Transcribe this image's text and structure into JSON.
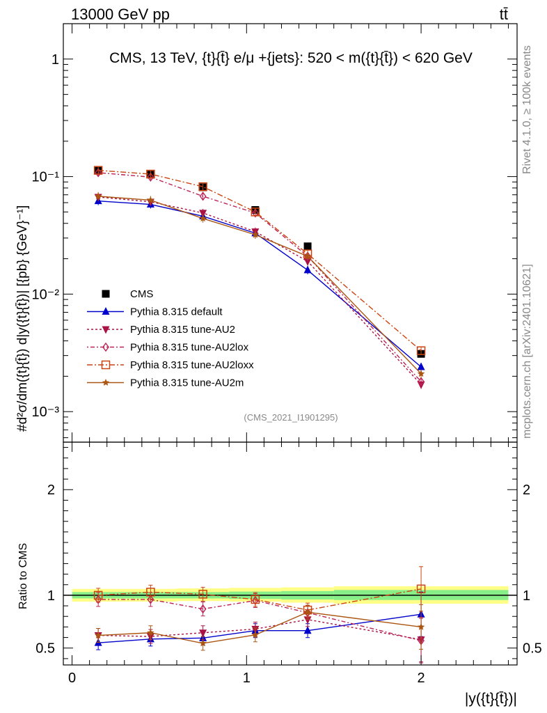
{
  "header": {
    "left": "13000 GeV pp",
    "right": "tt̄"
  },
  "side_labels": {
    "rivet": "Rivet 4.1.0, ≥ 100k events",
    "mcplots": "mcplots.cern.ch [arXiv:2401.10621]"
  },
  "chart_data": [
    {
      "type": "line",
      "panel": "main",
      "title": "CMS, 13 TeV, {t}{t̄} e/μ +{jets}: 520 < m({t}{t̄}) < 620 GeV",
      "ylabel": "#frac{d²σ}{dm({t}{t̄}) d|y({t}{t̄})|} [{pb} {GeV}⁻¹]",
      "ylabel_display": "#d²σ/dm({t}{t̄}) d|y({t}{t̄})| [{pb} {GeV}⁻¹]",
      "yscale": "log",
      "ylim": [
        0.00055,
        2.0
      ],
      "xlim": [
        -0.05,
        2.55
      ],
      "ytick_labels": [
        "10⁻³",
        "10⁻²",
        "10⁻¹",
        "1"
      ],
      "ytick_values": [
        0.001,
        0.01,
        0.1,
        1
      ],
      "watermark": "(CMS_2021_I1901295)",
      "x": [
        0.15,
        0.45,
        0.75,
        1.05,
        1.35,
        2.0
      ],
      "series": [
        {
          "name": "CMS",
          "color": "#000000",
          "marker": "square",
          "dash": "none",
          "values": [
            0.113,
            0.104,
            0.081,
            0.052,
            0.0255,
            0.0031
          ]
        },
        {
          "name": "Pythia 8.315 default",
          "color": "#0000cc",
          "marker": "triangle-up",
          "dash": "solid",
          "values": [
            0.062,
            0.058,
            0.046,
            0.033,
            0.016,
            0.0024
          ]
        },
        {
          "name": "Pythia 8.315 tune-AU2",
          "color": "#aa1144",
          "marker": "triangle-down",
          "dash": "3,3",
          "values": [
            0.067,
            0.061,
            0.049,
            0.034,
            0.019,
            0.0017
          ]
        },
        {
          "name": "Pythia 8.315 tune-AU2lox",
          "color": "#bb2255",
          "marker": "diamond-open",
          "dash": "2,3,6,3",
          "values": [
            0.108,
            0.099,
            0.068,
            0.049,
            0.021,
            0.0018
          ]
        },
        {
          "name": "Pythia 8.315 tune-AU2loxx",
          "color": "#cc4411",
          "marker": "square-open",
          "dash": "8,3,2,3",
          "values": [
            0.113,
            0.105,
            0.082,
            0.05,
            0.022,
            0.0033
          ]
        },
        {
          "name": "Pythia 8.315 tune-AU2m",
          "color": "#aa5511",
          "marker": "star",
          "dash": "solid",
          "values": [
            0.068,
            0.063,
            0.044,
            0.032,
            0.021,
            0.0021
          ]
        }
      ]
    },
    {
      "type": "line",
      "panel": "ratio",
      "ylabel": "Ratio to CMS",
      "xlabel": "|y({t}{t̄})|",
      "ylim": [
        0.34,
        2.45
      ],
      "xlim": [
        -0.05,
        2.55
      ],
      "ytick_labels": [
        "0.5",
        "1",
        "2"
      ],
      "ytick_values": [
        0.5,
        1,
        2
      ],
      "xtick_labels": [
        "0",
        "1",
        "2"
      ],
      "xtick_values": [
        0,
        1,
        2
      ],
      "x": [
        0.15,
        0.45,
        0.75,
        1.05,
        1.35,
        2.0
      ],
      "bands": {
        "yellow": {
          "color": "#ffff88",
          "bins": [
            [
              0,
              0.3,
              0.94,
              1.06
            ],
            [
              0.3,
              0.6,
              0.94,
              1.06
            ],
            [
              0.6,
              0.9,
              0.945,
              1.065
            ],
            [
              0.9,
              1.2,
              0.94,
              1.07
            ],
            [
              1.2,
              1.5,
              0.93,
              1.075
            ],
            [
              1.5,
              2.5,
              0.92,
              1.085
            ]
          ]
        },
        "green": {
          "color": "#88ee88",
          "bins": [
            [
              0,
              0.3,
              0.97,
              1.03
            ],
            [
              0.3,
              0.6,
              0.97,
              1.03
            ],
            [
              0.6,
              0.9,
              0.97,
              1.03
            ],
            [
              0.9,
              1.2,
              0.965,
              1.035
            ],
            [
              1.2,
              1.5,
              0.96,
              1.04
            ],
            [
              1.5,
              2.5,
              0.955,
              1.05
            ]
          ]
        }
      },
      "series": [
        {
          "name": "Pythia 8.315 default",
          "values": [
            0.55,
            0.585,
            0.595,
            0.665,
            0.665,
            0.82
          ]
        },
        {
          "name": "Pythia 8.315 tune-AU2",
          "values": [
            0.62,
            0.61,
            0.645,
            0.68,
            0.77,
            0.58
          ]
        },
        {
          "name": "Pythia 8.315 tune-AU2lox",
          "values": [
            0.96,
            0.96,
            0.87,
            0.95,
            0.835,
            0.57
          ]
        },
        {
          "name": "Pythia 8.315 tune-AU2loxx",
          "values": [
            1.0,
            1.03,
            1.01,
            0.96,
            0.86,
            1.06
          ]
        },
        {
          "name": "Pythia 8.315 tune-AU2m",
          "values": [
            0.62,
            0.645,
            0.545,
            0.625,
            0.84,
            0.7
          ]
        }
      ]
    }
  ]
}
